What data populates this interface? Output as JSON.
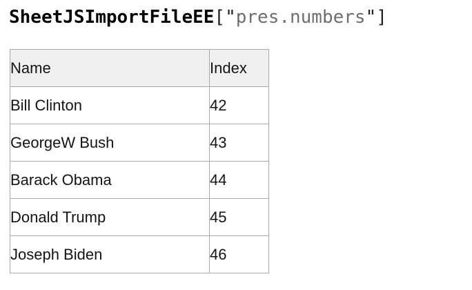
{
  "title": {
    "identifier": "SheetJSImportFileEE",
    "open_bracket": "[",
    "open_quote": "\"",
    "string_value": "pres.numbers",
    "close_quote": "\"",
    "close_bracket": "]",
    "identifier_color": "#000000",
    "punctuation_color": "#222222",
    "string_color": "#6e6e6e"
  },
  "table": {
    "headers": [
      "Name",
      "Index"
    ],
    "rows": [
      {
        "name": "Bill Clinton",
        "index": "42"
      },
      {
        "name": "GeorgeW Bush",
        "index": "43"
      },
      {
        "name": "Barack Obama",
        "index": "44"
      },
      {
        "name": "Donald Trump",
        "index": "45"
      },
      {
        "name": "Joseph Biden",
        "index": "46"
      }
    ],
    "header_background": "#f0f0f0",
    "border_color": "#a9a9a9",
    "row_background": "#ffffff"
  }
}
